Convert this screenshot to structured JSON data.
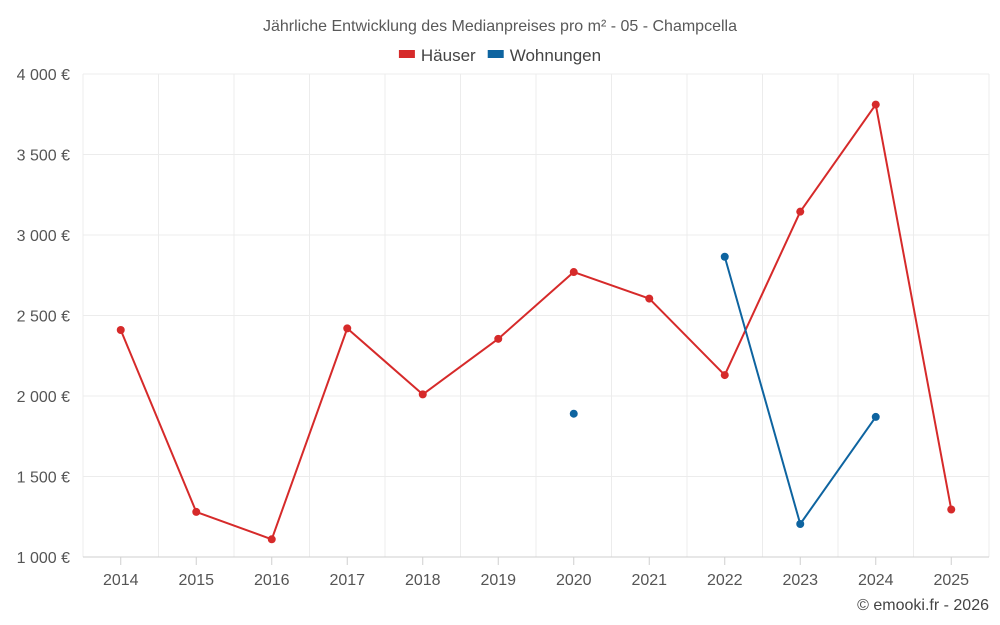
{
  "chart_data": {
    "type": "line",
    "title": "Jährliche Entwicklung des Medianpreises pro m² - 05 - Champcella",
    "categories": [
      "2014",
      "2015",
      "2016",
      "2017",
      "2018",
      "2019",
      "2020",
      "2021",
      "2022",
      "2023",
      "2024",
      "2025"
    ],
    "series": [
      {
        "name": "Häuser",
        "color": "#d62a2a",
        "values": [
          2410,
          1280,
          1110,
          2420,
          2010,
          2355,
          2770,
          2605,
          2130,
          3145,
          3810,
          1295
        ]
      },
      {
        "name": "Wohnungen",
        "color": "#0e64a0",
        "values": [
          null,
          null,
          null,
          null,
          null,
          null,
          1890,
          null,
          2865,
          1205,
          1870,
          null
        ]
      }
    ],
    "ylim": [
      1000,
      4000
    ],
    "yticks": [
      1000,
      1500,
      2000,
      2500,
      3000,
      3500,
      4000
    ],
    "ytick_labels": [
      "1 000 €",
      "1 500 €",
      "2 000 €",
      "2 500 €",
      "3 000 €",
      "3 500 €",
      "4 000 €"
    ],
    "xlabel": "",
    "ylabel": "",
    "legend_position": "top-center",
    "grid": true
  },
  "credit": "© emooki.fr - 2026"
}
